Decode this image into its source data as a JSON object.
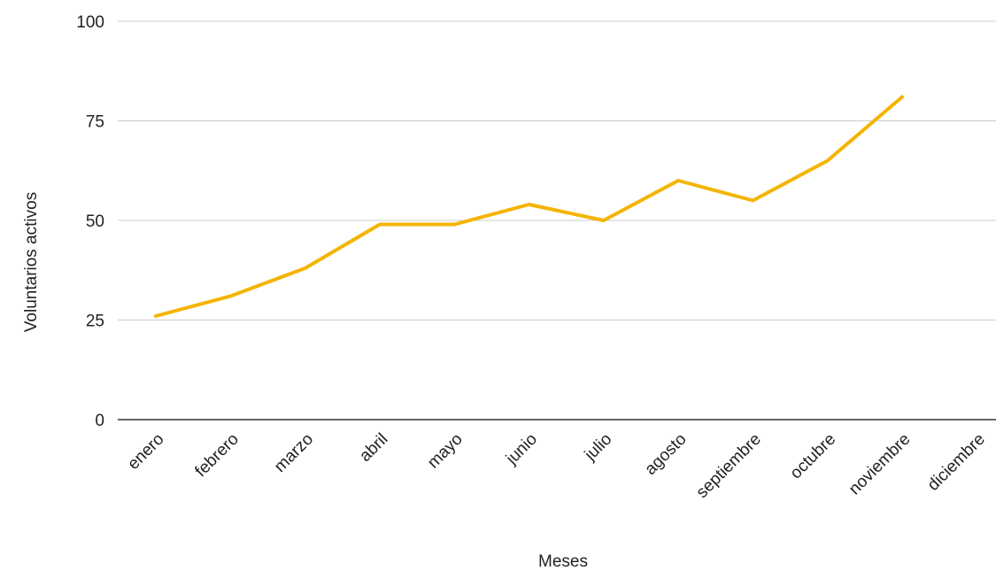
{
  "chart_data": {
    "type": "line",
    "xlabel": "Meses",
    "ylabel": "Voluntarios activos",
    "categories": [
      "enero",
      "febrero",
      "marzo",
      "abril",
      "mayo",
      "junio",
      "julio",
      "agosto",
      "septiembre",
      "octubre",
      "noviembre",
      "diciembre"
    ],
    "series": [
      {
        "values": [
          26,
          31,
          38,
          49,
          49,
          54,
          50,
          60,
          55,
          65,
          81,
          null
        ],
        "color": "#f4b400"
      }
    ],
    "ylim": [
      0,
      100
    ],
    "yticks": [
      0,
      25,
      50,
      75,
      100
    ],
    "grid": true,
    "legend": "none",
    "colors": {
      "line": "#f4b400",
      "grid": "#cccccc",
      "baseline": "#333333",
      "text": "#222222"
    }
  }
}
